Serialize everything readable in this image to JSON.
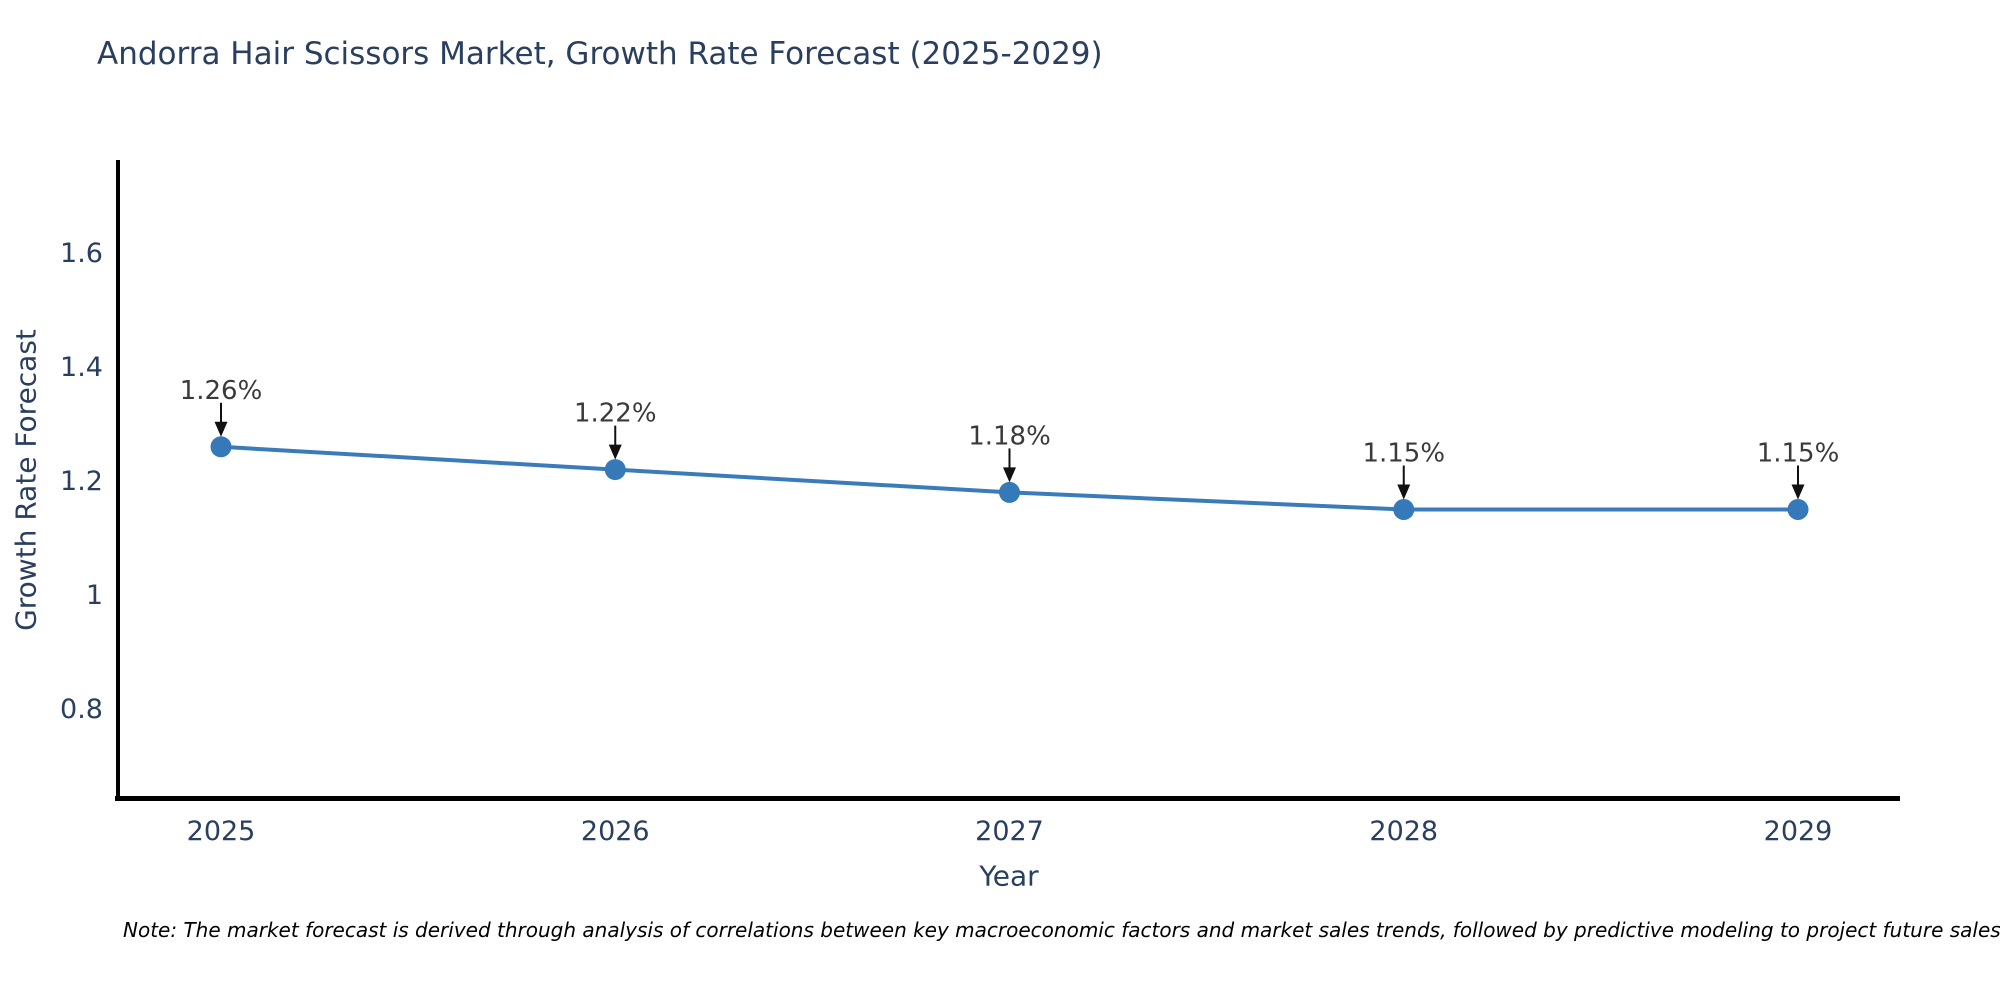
{
  "chart": {
    "title": "Andorra Hair Scissors Market, Growth Rate Forecast (2025-2029)",
    "xlabel": "Year",
    "ylabel": "Growth Rate Forecast",
    "note": "Note: The market forecast is derived through analysis of correlations between key macroeconomic factors and market sales trends, followed by predictive modeling to project future sales"
  },
  "chart_data": {
    "type": "line",
    "title": "Andorra Hair Scissors Market, Growth Rate Forecast (2025-2029)",
    "xlabel": "Year",
    "ylabel": "Growth Rate Forecast",
    "x": [
      2025,
      2026,
      2027,
      2028,
      2029
    ],
    "x_tick_labels": [
      "2025",
      "2026",
      "2027",
      "2028",
      "2029"
    ],
    "series": [
      {
        "name": "Growth Rate Forecast",
        "values": [
          1.26,
          1.22,
          1.18,
          1.15,
          1.15
        ],
        "point_labels": [
          "1.26%",
          "1.22%",
          "1.18%",
          "1.15%",
          "1.15%"
        ]
      }
    ],
    "y_ticks": [
      0.8,
      1.0,
      1.2,
      1.4,
      1.6
    ],
    "y_tick_labels": [
      "0.8",
      "1",
      "1.2",
      "1.4",
      "1.6"
    ],
    "ylim": [
      0.64,
      1.76
    ],
    "grid": false,
    "legend": false,
    "annotations_have_arrows": true,
    "colors": {
      "line": "#3a7cba",
      "marker": "#3579b8",
      "axis": "#000000",
      "tick_text": "#2a3f5f",
      "title_text": "#2a3f5f",
      "annotation_text": "#3a3a3a",
      "annotation_arrow": "#111111",
      "background": "#ffffff"
    }
  }
}
